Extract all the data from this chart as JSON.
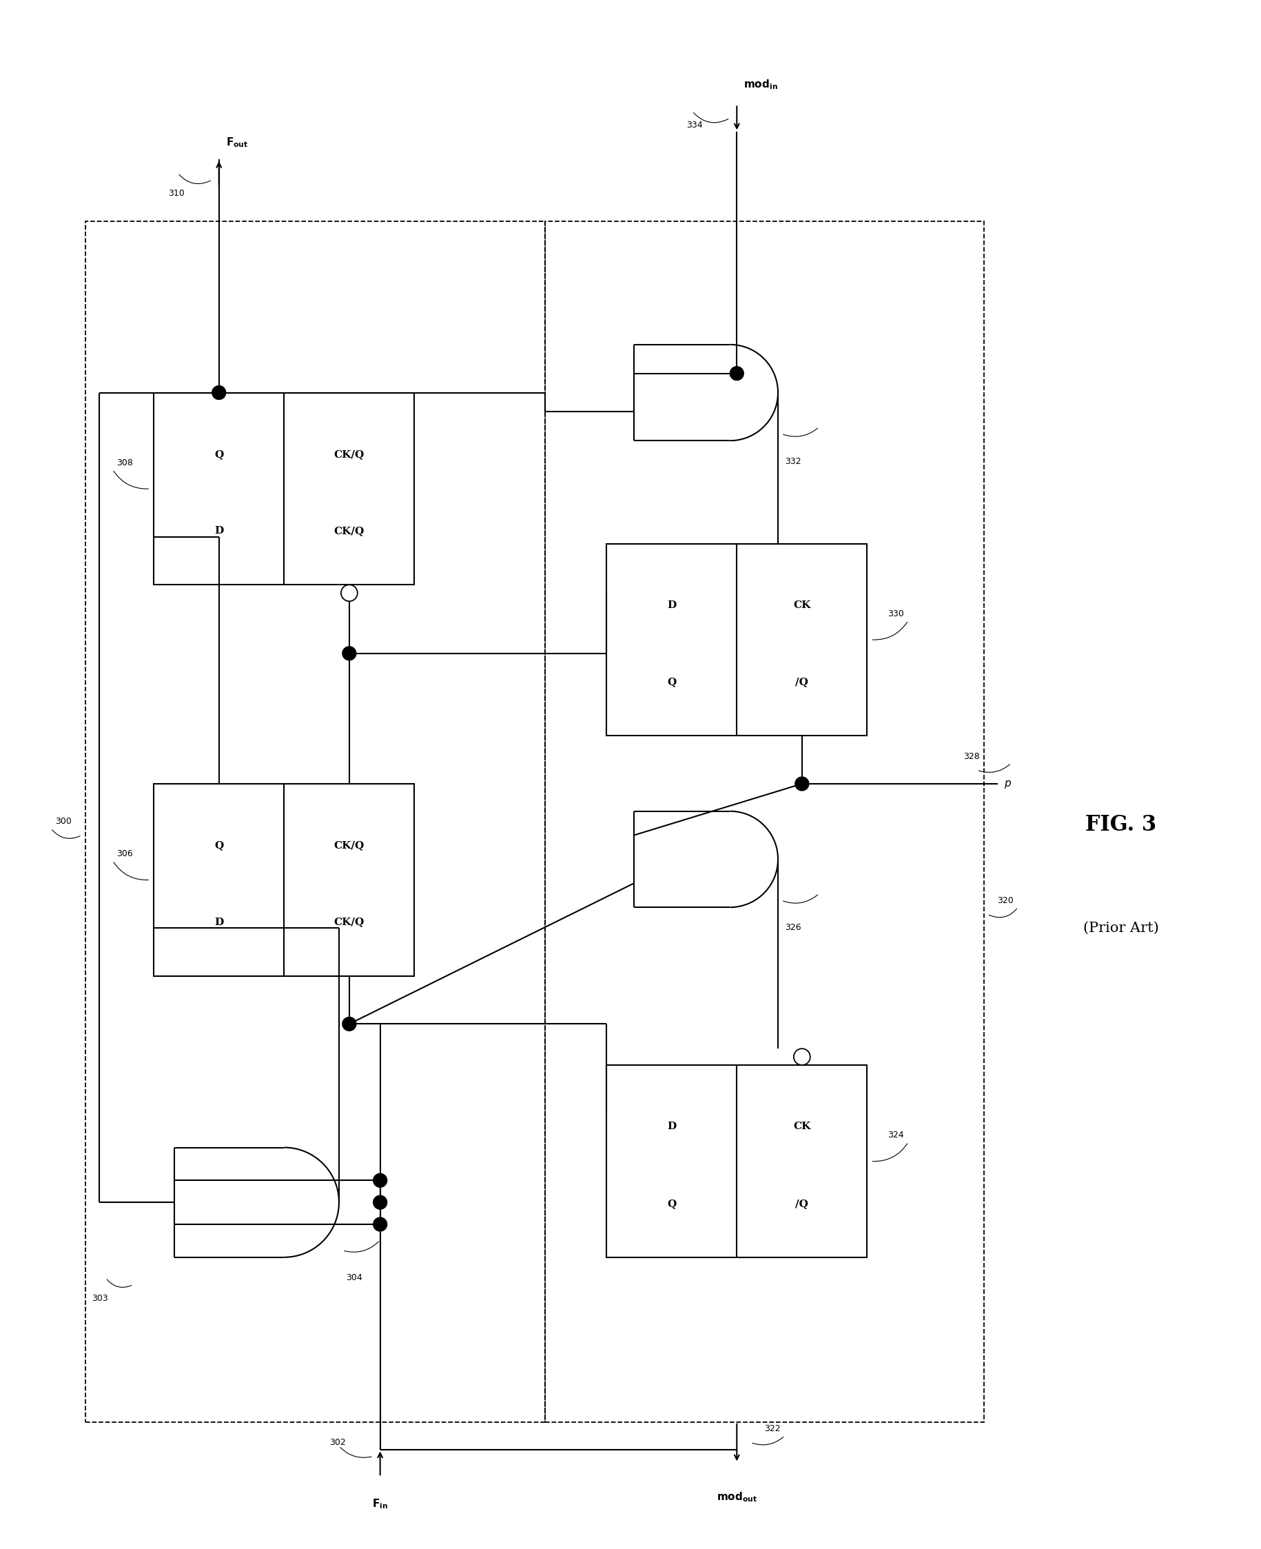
{
  "fig_width": 18.3,
  "fig_height": 22.47,
  "bg_color": "#ffffff",
  "title": "FIG. 3",
  "subtitle": "(Prior Art)",
  "labels": {
    "Fout": "F",
    "Fout_sub": "out",
    "Fin": "F",
    "Fin_sub": "in",
    "modin": "mod",
    "modin_sub": "in",
    "modout": "mod",
    "modout_sub": "out",
    "p": "p"
  },
  "refs": [
    "300",
    "302",
    "303",
    "304",
    "306",
    "308",
    "310",
    "320",
    "322",
    "324",
    "326",
    "328",
    "330",
    "332",
    "334"
  ]
}
